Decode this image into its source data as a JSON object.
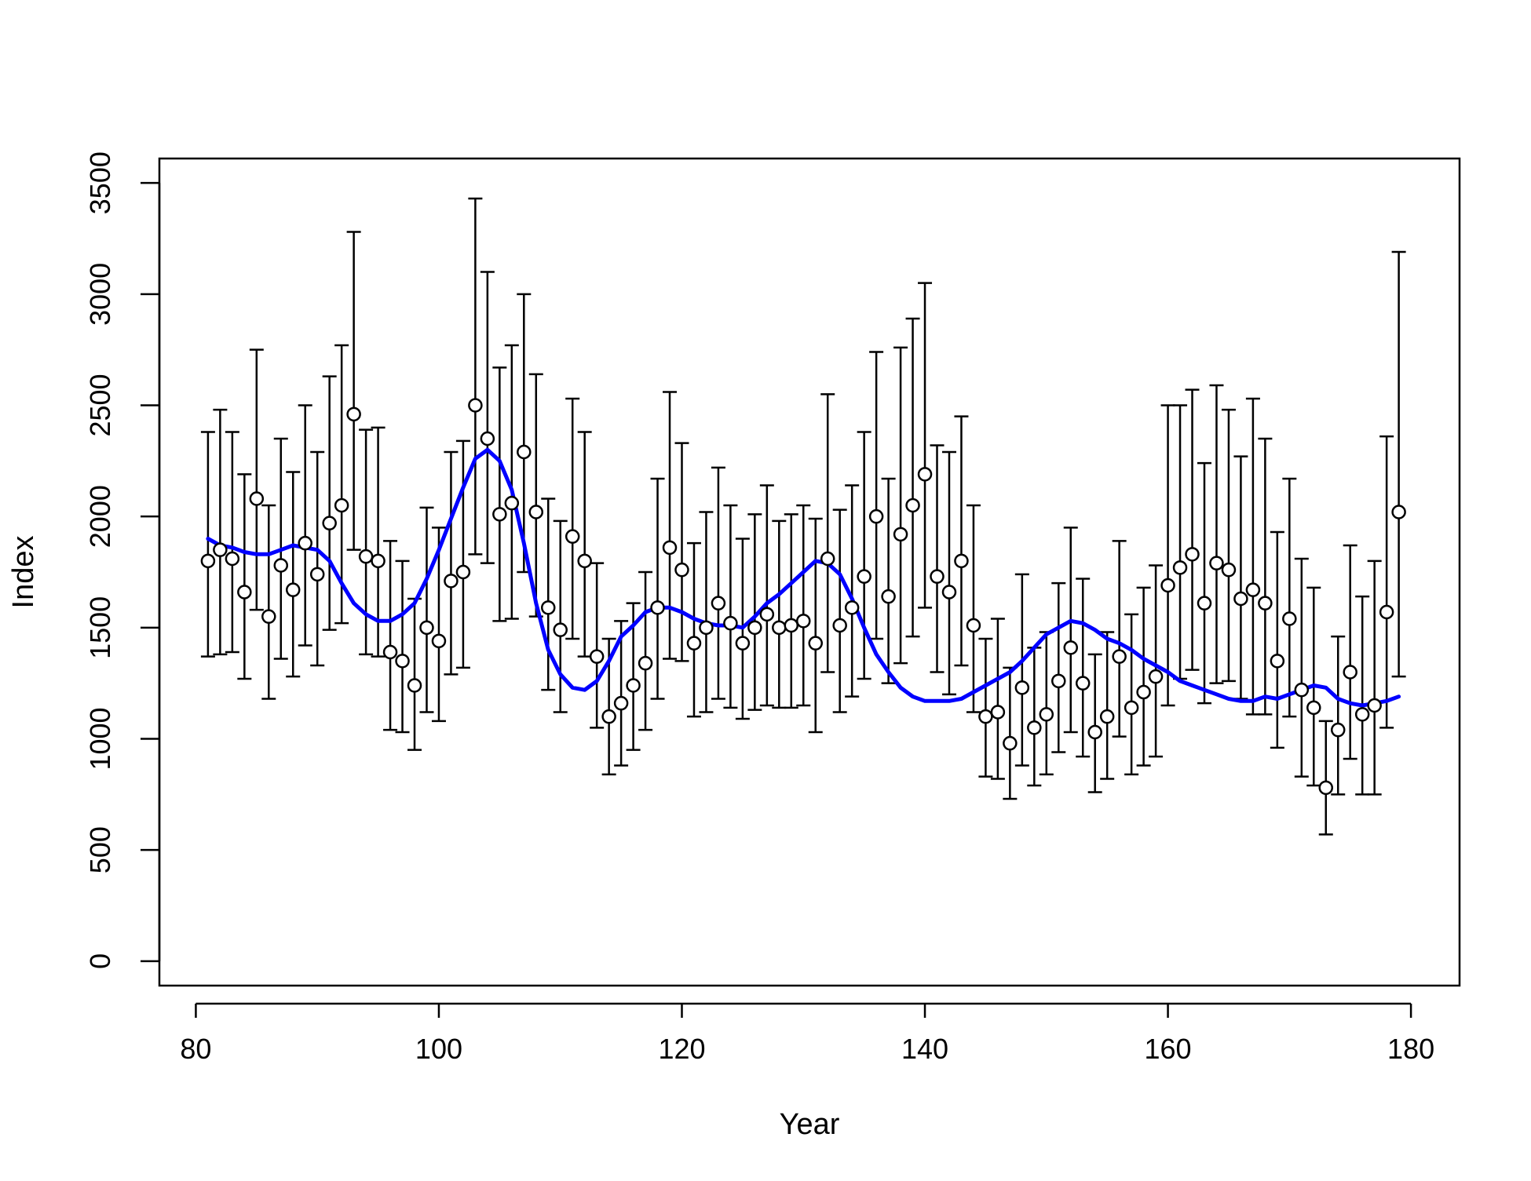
{
  "chart_data": {
    "type": "scatter",
    "title": "",
    "xlabel": "Year",
    "ylabel": "Index",
    "xlim": [
      77,
      184
    ],
    "ylim": [
      -110,
      3610
    ],
    "x_ticks": [
      "80",
      "100",
      "120",
      "140",
      "160",
      "180"
    ],
    "y_ticks": [
      "0",
      "500",
      "1000",
      "1500",
      "2000",
      "2500",
      "3000",
      "3500"
    ],
    "grid": false,
    "legend": "none",
    "colors": {
      "points": "#000000",
      "point_fill": "#ffffff",
      "error_bars": "#000000",
      "smooth_line": "#0000ff"
    },
    "series": [
      {
        "kind": "points_with_error_bars",
        "x": [
          81,
          82,
          83,
          84,
          85,
          86,
          87,
          88,
          89,
          90,
          91,
          92,
          93,
          94,
          95,
          96,
          97,
          98,
          99,
          100,
          101,
          102,
          103,
          104,
          105,
          106,
          107,
          108,
          109,
          110,
          111,
          112,
          113,
          114,
          115,
          116,
          117,
          118,
          119,
          120,
          121,
          122,
          123,
          124,
          125,
          126,
          127,
          128,
          129,
          130,
          131,
          132,
          133,
          134,
          135,
          136,
          137,
          138,
          139,
          140,
          141,
          142,
          143,
          144,
          145,
          146,
          147,
          148,
          149,
          150,
          151,
          152,
          153,
          154,
          155,
          156,
          157,
          158,
          159,
          160,
          161,
          162,
          163,
          164,
          165,
          166,
          167,
          168,
          169,
          170,
          171,
          172,
          173,
          174,
          175,
          176,
          177,
          178,
          179
        ],
        "y": [
          1800,
          1850,
          1810,
          1660,
          2080,
          1550,
          1780,
          1670,
          1880,
          1740,
          1970,
          2050,
          2460,
          1820,
          1800,
          1390,
          1350,
          1240,
          1500,
          1440,
          1710,
          1750,
          2500,
          2350,
          2010,
          2060,
          2290,
          2020,
          1590,
          1490,
          1910,
          1800,
          1370,
          1100,
          1160,
          1240,
          1340,
          1590,
          1860,
          1760,
          1430,
          1500,
          1610,
          1520,
          1430,
          1500,
          1560,
          1500,
          1510,
          1530,
          1430,
          1810,
          1510,
          1590,
          1730,
          2000,
          1640,
          1920,
          2050,
          2190,
          1730,
          1660,
          1800,
          1510,
          1100,
          1120,
          980,
          1230,
          1050,
          1110,
          1260,
          1410,
          1250,
          1030,
          1100,
          1370,
          1140,
          1210,
          1280,
          1690,
          1770,
          1830,
          1610,
          1790,
          1760,
          1630,
          1670,
          1610,
          1350,
          1540,
          1220,
          1140,
          780,
          1040,
          1300,
          1110,
          1150,
          1570,
          2020
        ],
        "lower": [
          1370,
          1380,
          1390,
          1270,
          1580,
          1180,
          1360,
          1280,
          1420,
          1330,
          1490,
          1520,
          1850,
          1380,
          1370,
          1040,
          1030,
          950,
          1120,
          1080,
          1290,
          1320,
          1830,
          1790,
          1530,
          1540,
          1750,
          1550,
          1220,
          1120,
          1450,
          1370,
          1050,
          840,
          880,
          950,
          1040,
          1180,
          1360,
          1350,
          1100,
          1120,
          1180,
          1140,
          1090,
          1130,
          1150,
          1140,
          1140,
          1150,
          1030,
          1300,
          1120,
          1190,
          1270,
          1450,
          1250,
          1340,
          1460,
          1590,
          1300,
          1200,
          1330,
          1120,
          830,
          820,
          730,
          880,
          790,
          840,
          940,
          1030,
          920,
          760,
          820,
          1010,
          840,
          880,
          920,
          1150,
          1270,
          1310,
          1160,
          1250,
          1260,
          1180,
          1110,
          1110,
          960,
          1100,
          830,
          790,
          570,
          750,
          910,
          750,
          750,
          1050,
          1280
        ],
        "upper": [
          2380,
          2480,
          2380,
          2190,
          2750,
          2050,
          2350,
          2200,
          2500,
          2290,
          2630,
          2770,
          3280,
          2390,
          2400,
          1890,
          1800,
          1630,
          2040,
          1950,
          2290,
          2340,
          3430,
          3100,
          2670,
          2770,
          3000,
          2640,
          2080,
          1980,
          2530,
          2380,
          1790,
          1450,
          1530,
          1610,
          1750,
          2170,
          2560,
          2330,
          1880,
          2020,
          2220,
          2050,
          1900,
          2010,
          2140,
          1980,
          2010,
          2050,
          1990,
          2550,
          2030,
          2140,
          2380,
          2740,
          2170,
          2760,
          2890,
          3050,
          2320,
          2290,
          2450,
          2050,
          1450,
          1540,
          1320,
          1740,
          1410,
          1480,
          1700,
          1950,
          1720,
          1380,
          1480,
          1890,
          1560,
          1680,
          1780,
          2500,
          2500,
          2570,
          2240,
          2590,
          2480,
          2270,
          2530,
          2350,
          1930,
          2170,
          1810,
          1680,
          1080,
          1460,
          1870,
          1640,
          1800,
          2360,
          3190
        ]
      },
      {
        "kind": "smooth_line",
        "x": [
          81,
          82,
          83,
          84,
          85,
          86,
          87,
          88,
          89,
          90,
          91,
          92,
          93,
          94,
          95,
          96,
          97,
          98,
          99,
          100,
          101,
          102,
          103,
          104,
          105,
          106,
          107,
          108,
          109,
          110,
          111,
          112,
          113,
          114,
          115,
          116,
          117,
          118,
          119,
          120,
          121,
          122,
          123,
          124,
          125,
          126,
          127,
          128,
          129,
          130,
          131,
          132,
          133,
          134,
          135,
          136,
          137,
          138,
          139,
          140,
          141,
          142,
          143,
          144,
          145,
          146,
          147,
          148,
          149,
          150,
          151,
          152,
          153,
          154,
          155,
          156,
          157,
          158,
          159,
          160,
          161,
          162,
          163,
          164,
          165,
          166,
          167,
          168,
          169,
          170,
          171,
          172,
          173,
          174,
          175,
          176,
          177,
          178,
          179
        ],
        "y": [
          1900,
          1870,
          1860,
          1840,
          1830,
          1830,
          1850,
          1870,
          1860,
          1850,
          1800,
          1700,
          1610,
          1560,
          1530,
          1530,
          1560,
          1610,
          1720,
          1850,
          1990,
          2130,
          2260,
          2300,
          2250,
          2120,
          1880,
          1610,
          1400,
          1290,
          1230,
          1220,
          1260,
          1350,
          1460,
          1510,
          1570,
          1590,
          1590,
          1570,
          1540,
          1520,
          1510,
          1510,
          1500,
          1550,
          1610,
          1650,
          1700,
          1750,
          1800,
          1790,
          1740,
          1630,
          1500,
          1380,
          1300,
          1230,
          1190,
          1170,
          1170,
          1170,
          1180,
          1210,
          1240,
          1270,
          1300,
          1350,
          1410,
          1470,
          1500,
          1530,
          1520,
          1490,
          1450,
          1430,
          1400,
          1360,
          1330,
          1300,
          1260,
          1240,
          1220,
          1200,
          1180,
          1170,
          1170,
          1190,
          1180,
          1200,
          1220,
          1240,
          1230,
          1180,
          1160,
          1150,
          1160,
          1170,
          1190
        ]
      }
    ]
  }
}
